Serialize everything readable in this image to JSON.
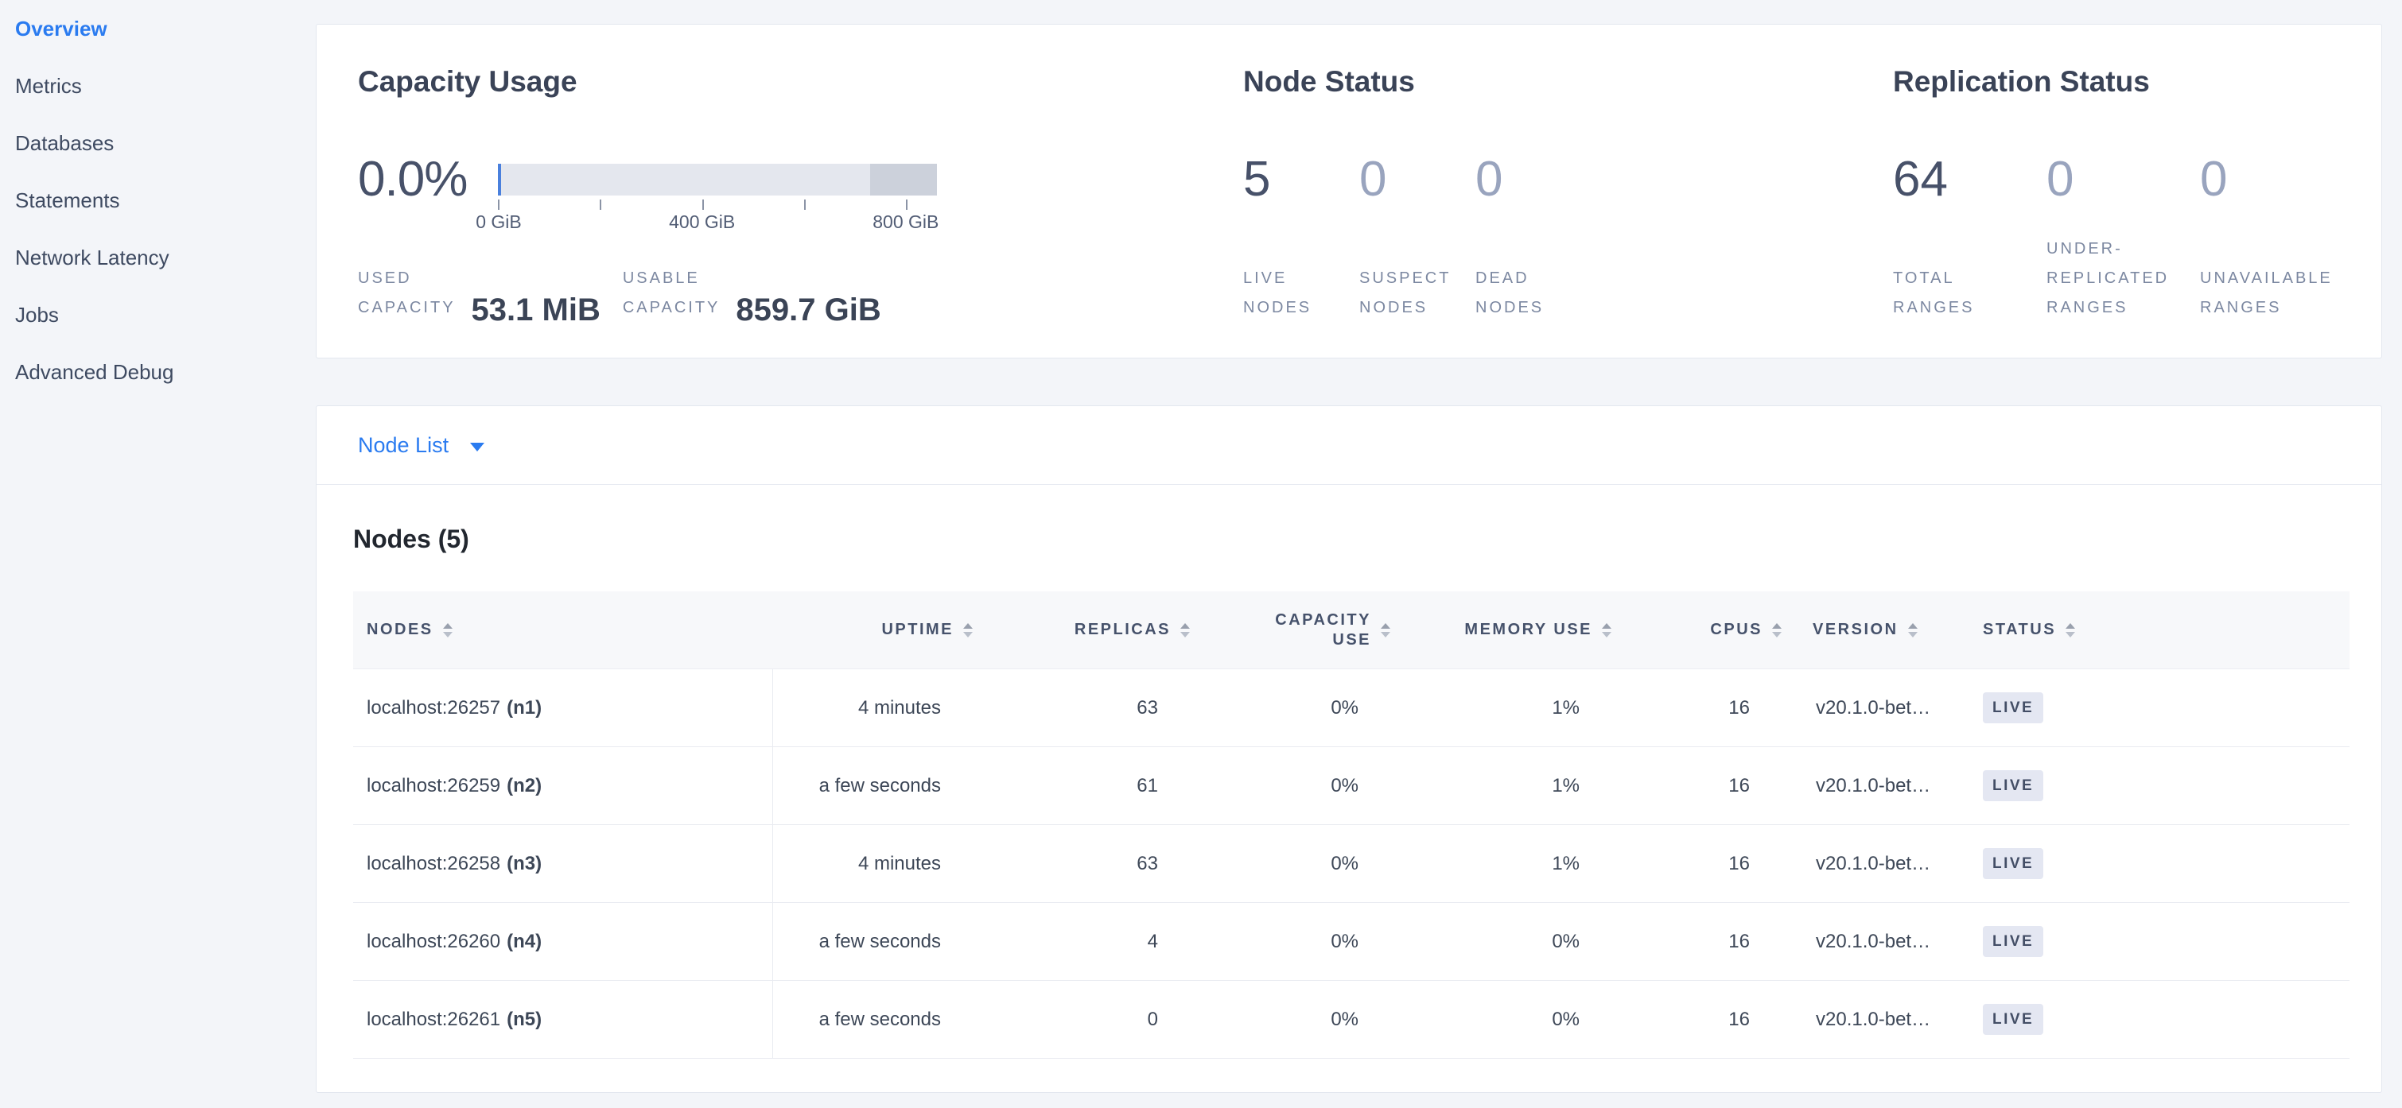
{
  "colors": {
    "accent_blue": "#2a7bf0",
    "page_background": "#f3f5f9",
    "panel_border": "#e3e7ef",
    "gauge_track": "#e4e7ee",
    "gauge_nonusable": "#ccd1db",
    "gauge_used": "#4a80dd",
    "badge_background": "#e4e7f2",
    "text_dark": "#3a4357",
    "text_muted": "#7c88a1"
  },
  "sidebar": {
    "items": [
      {
        "label": "Overview",
        "active": true
      },
      {
        "label": "Metrics",
        "active": false
      },
      {
        "label": "Databases",
        "active": false
      },
      {
        "label": "Statements",
        "active": false
      },
      {
        "label": "Network Latency",
        "active": false
      },
      {
        "label": "Jobs",
        "active": false
      },
      {
        "label": "Advanced Debug",
        "active": false
      }
    ]
  },
  "summary": {
    "capacity": {
      "title": "Capacity Usage",
      "used_percent": "0.0%",
      "axis_labels": [
        "0 GiB",
        "400 GiB",
        "800 GiB"
      ],
      "stats": [
        {
          "label": "USED\nCAPACITY",
          "value": "53.1 MiB"
        },
        {
          "label": "USABLE\nCAPACITY",
          "value": "859.7 GiB"
        }
      ]
    },
    "node_status": {
      "title": "Node Status",
      "stats": [
        {
          "value": "5",
          "label": "LIVE\nNODES"
        },
        {
          "value": "0",
          "label": "SUSPECT\nNODES"
        },
        {
          "value": "0",
          "label": "DEAD\nNODES"
        }
      ]
    },
    "replication": {
      "title": "Replication Status",
      "stats": [
        {
          "value": "64",
          "label": "TOTAL\nRANGES"
        },
        {
          "value": "0",
          "label": "UNDER-\nREPLICATED\nRANGES"
        },
        {
          "value": "0",
          "label": "UNAVAILABLE\nRANGES"
        }
      ]
    }
  },
  "node_list": {
    "selector_label": "Node List",
    "table_title": "Nodes (5)",
    "columns": [
      "NODES",
      "UPTIME",
      "REPLICAS",
      "CAPACITY\nUSE",
      "MEMORY USE",
      "CPUS",
      "VERSION",
      "STATUS"
    ],
    "rows": [
      {
        "address": "localhost:26257",
        "id": "(n1)",
        "uptime": "4 minutes",
        "replicas": "63",
        "capacity_use": "0%",
        "memory_use": "1%",
        "cpus": "16",
        "version": "v20.1.0-bet…",
        "status": "LIVE"
      },
      {
        "address": "localhost:26259",
        "id": "(n2)",
        "uptime": "a few seconds",
        "replicas": "61",
        "capacity_use": "0%",
        "memory_use": "1%",
        "cpus": "16",
        "version": "v20.1.0-bet…",
        "status": "LIVE"
      },
      {
        "address": "localhost:26258",
        "id": "(n3)",
        "uptime": "4 minutes",
        "replicas": "63",
        "capacity_use": "0%",
        "memory_use": "1%",
        "cpus": "16",
        "version": "v20.1.0-bet…",
        "status": "LIVE"
      },
      {
        "address": "localhost:26260",
        "id": "(n4)",
        "uptime": "a few seconds",
        "replicas": "4",
        "capacity_use": "0%",
        "memory_use": "0%",
        "cpus": "16",
        "version": "v20.1.0-bet…",
        "status": "LIVE"
      },
      {
        "address": "localhost:26261",
        "id": "(n5)",
        "uptime": "a few seconds",
        "replicas": "0",
        "capacity_use": "0%",
        "memory_use": "0%",
        "cpus": "16",
        "version": "v20.1.0-bet…",
        "status": "LIVE"
      }
    ]
  }
}
